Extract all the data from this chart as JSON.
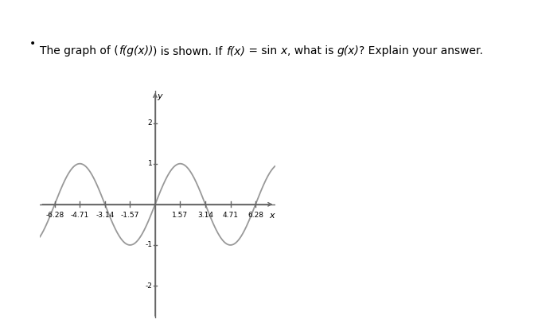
{
  "bullet_text_parts": [
    [
      "The graph of (",
      false
    ],
    [
      "f(g(x))",
      true
    ],
    [
      ") is shown. If ",
      false
    ],
    [
      "f(x)",
      true
    ],
    [
      " = sin ",
      false
    ],
    [
      "x",
      true
    ],
    [
      ", what is ",
      false
    ],
    [
      "g(x)",
      true
    ],
    [
      "? Explain your answer.",
      false
    ]
  ],
  "x_ticks": [
    -6.28,
    -4.71,
    -3.14,
    -1.57,
    1.57,
    3.14,
    4.71,
    6.28
  ],
  "x_tick_labels": [
    "-6.28",
    "-4.71",
    "-3.14",
    "-1.57",
    "1.57",
    "3.14",
    "4.71",
    "6.28"
  ],
  "y_ticks": [
    -2,
    -1,
    1,
    2
  ],
  "y_tick_labels": [
    "-2",
    "-1",
    "1",
    "2"
  ],
  "xlim": [
    -7.2,
    7.5
  ],
  "ylim": [
    -2.8,
    2.8
  ],
  "x_label": "x",
  "y_label": "y",
  "curve_color": "#999999",
  "curve_linewidth": 1.3,
  "axis_color": "#666666",
  "axis_lw": 1.0,
  "background_color": "#ffffff",
  "fig_width": 6.71,
  "fig_height": 4.21,
  "dpi": 100,
  "font_size_ticks": 6.5,
  "font_size_label": 8,
  "font_size_bullet": 10
}
